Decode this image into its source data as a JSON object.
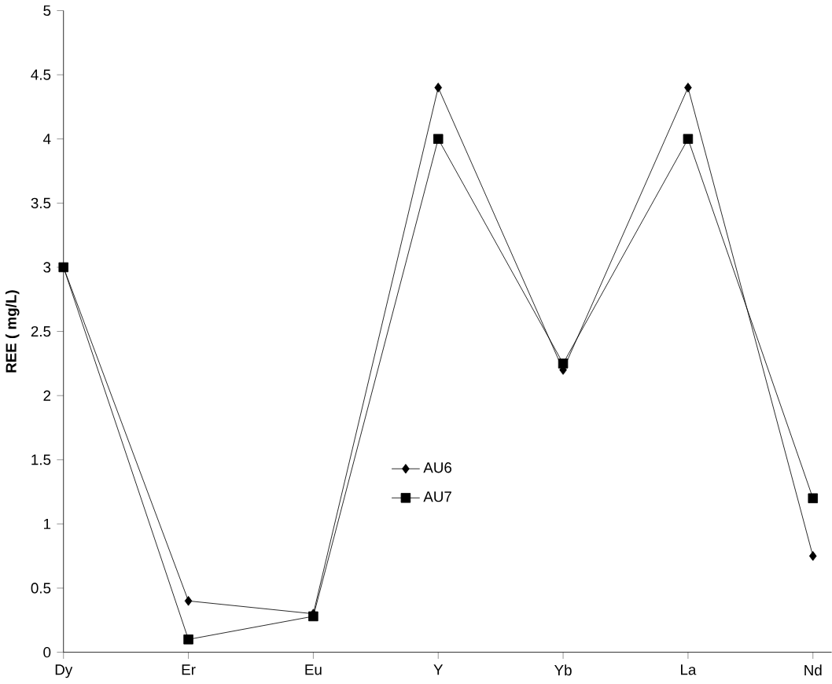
{
  "chart_data": {
    "type": "line",
    "ylabel": "REE ( mg/L)",
    "categories": [
      "Dy",
      "Er",
      "Eu",
      "Y",
      "Yb",
      "La",
      "Nd"
    ],
    "series": [
      {
        "name": "AU6",
        "color": "#000000",
        "marker": "diamond",
        "values": [
          3,
          0.4,
          0.3,
          4.4,
          2.2,
          4.4,
          0.75
        ]
      },
      {
        "name": "AU7",
        "color": "#000000",
        "marker": "square",
        "values": [
          3,
          0.1,
          0.28,
          4.0,
          2.25,
          4.0,
          1.2
        ]
      }
    ],
    "ylim": [
      0,
      5
    ],
    "yticks": [
      0,
      0.5,
      1,
      1.5,
      2,
      2.5,
      3,
      3.5,
      4,
      4.5,
      5
    ],
    "legend": "center",
    "grid": false
  }
}
